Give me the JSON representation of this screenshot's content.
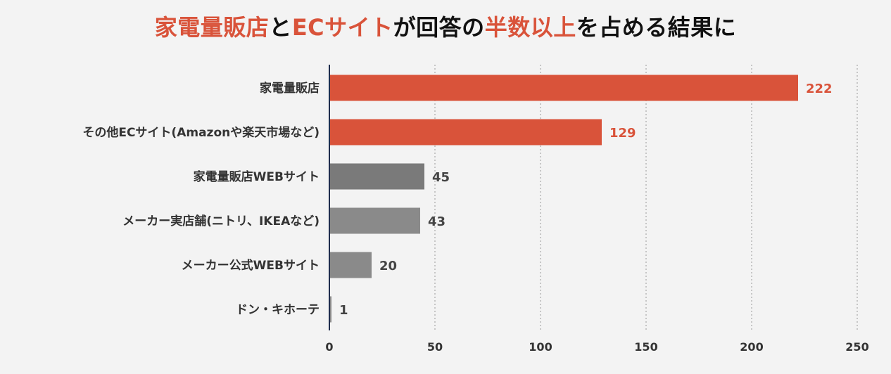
{
  "title": {
    "parts": [
      {
        "text": "家電量販店",
        "highlight": true
      },
      {
        "text": "と",
        "highlight": false
      },
      {
        "text": "ECサイト",
        "highlight": true
      },
      {
        "text": "が回答の",
        "highlight": false
      },
      {
        "text": "半数以上",
        "highlight": true
      },
      {
        "text": "を占める結果に",
        "highlight": false
      }
    ]
  },
  "colors": {
    "highlight": "#d9533a",
    "bar_gray_dark": "#7a7a7a",
    "bar_gray": "#8a8a8a",
    "label_gray": "#444444",
    "axis": "#1f2d4d",
    "grid": "#9a9a9a"
  },
  "chart_data": {
    "type": "bar",
    "orientation": "horizontal",
    "title": "家電量販店とECサイトが回答の半数以上を占める結果に",
    "categories": [
      "家電量販店",
      "その他ECサイト(Amazonや楽天市場など)",
      "家電量販店WEBサイト",
      "メーカー実店舗(ニトリ、IKEAなど)",
      "メーカー公式WEBサイト",
      "ドン・キホーテ"
    ],
    "values": [
      222,
      129,
      45,
      43,
      20,
      1
    ],
    "highlighted": [
      true,
      true,
      false,
      false,
      false,
      false
    ],
    "xlim": [
      0,
      250
    ],
    "xticks": [
      0,
      50,
      100,
      150,
      200,
      250
    ],
    "grid": "vertical dotted",
    "legend": "none"
  }
}
